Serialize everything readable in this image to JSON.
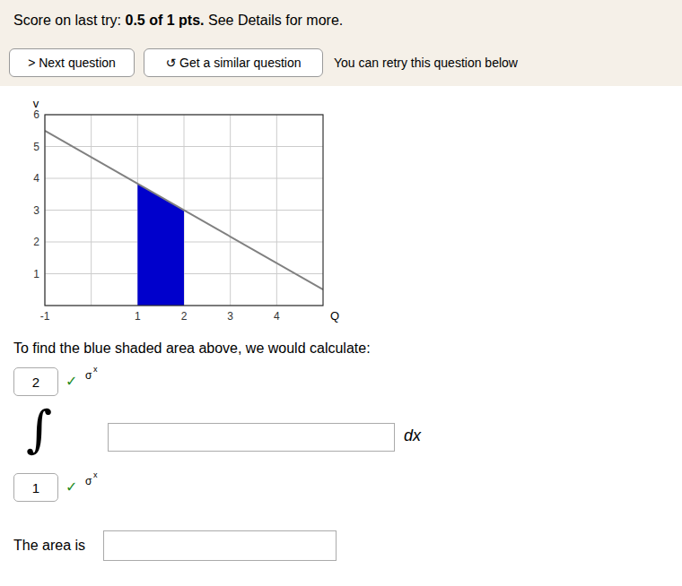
{
  "chart_data": {
    "type": "line",
    "xlabel": "Q",
    "ylabel": "v",
    "xlim": [
      -1,
      5
    ],
    "ylim": [
      0,
      6
    ],
    "xticks": [
      -1,
      {
        "value": 0,
        "label": null
      },
      1,
      2,
      3,
      4
    ],
    "yticks": [
      {
        "value": 0,
        "label": null
      },
      1,
      2,
      3,
      4,
      5,
      6
    ],
    "grid": true,
    "series": [
      {
        "type": "line",
        "color": "#808080",
        "x": [
          -1,
          5
        ],
        "values": [
          5.5,
          0.5
        ]
      },
      {
        "type": "area",
        "color": "#0000cc",
        "x": [
          1,
          2
        ],
        "values": [
          3.8333333333333335,
          3
        ]
      }
    ]
  },
  "page": {
    "header_text": "Score on last try: ",
    "header_bold": "0.5 of 1 pts.",
    "header_rest": " See Details for more.",
    "btn1": "> Next question",
    "btn2": "↺ Get a similar question",
    "btn3": "You can retry this question below",
    "question_text": "To find the blue shaded area above, we would calculate:",
    "integral_sign": "∫",
    "integral_upper": "2",
    "integral_upper_check": "✓",
    "integral_lower": "1",
    "integral_lower_check": "✓",
    "check_color": "#228B22",
    "sigma": "σ",
    "sigma_sup": "x",
    "dx_text": "dx",
    "area_label": "The area is"
  }
}
